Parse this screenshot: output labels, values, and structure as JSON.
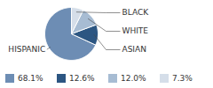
{
  "chart_data": {
    "type": "pie",
    "categories": [
      "HISPANIC",
      "ASIAN",
      "WHITE",
      "BLACK"
    ],
    "values": [
      68.1,
      12.6,
      12.0,
      7.3
    ],
    "value_labels": [
      "68.1%",
      "12.6%",
      "12.0%",
      "7.3%"
    ],
    "colors": [
      "#6d8db4",
      "#2c5682",
      "#a7bcd3",
      "#d5dee9"
    ],
    "legend": "bottom"
  }
}
